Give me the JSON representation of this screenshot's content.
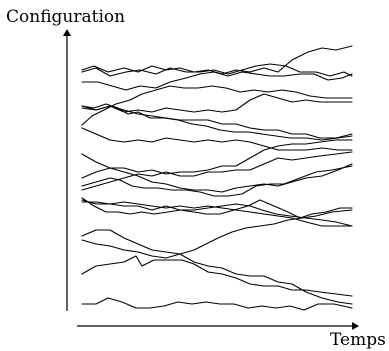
{
  "y_axis_label": "Configuration",
  "x_axis_label": "Temps",
  "trajectory_count": 17
}
